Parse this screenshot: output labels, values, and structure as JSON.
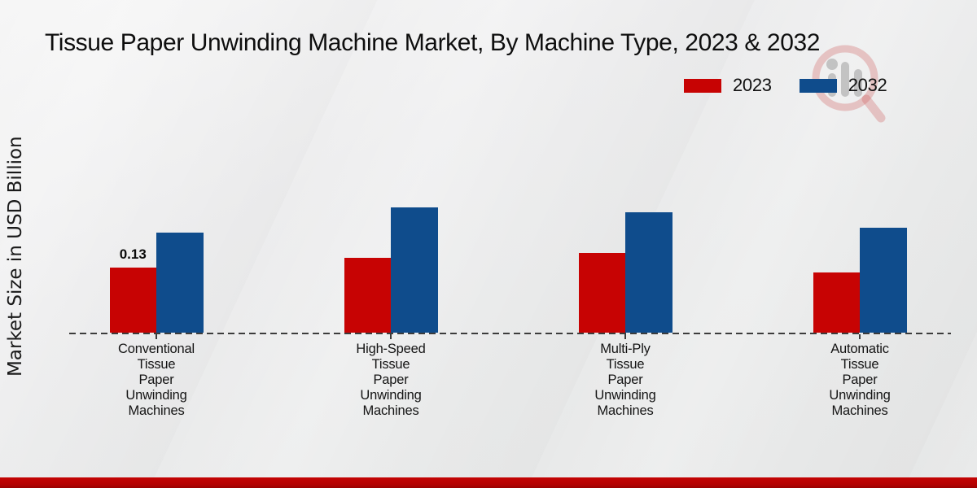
{
  "title": "Tissue Paper Unwinding Machine Market, By Machine Type, 2023 & 2032",
  "y_axis_label": "Market Size in USD Billion",
  "legend": {
    "items": [
      {
        "label": "2023",
        "color": "#c70303"
      },
      {
        "label": "2032",
        "color": "#0f4c8c"
      }
    ],
    "position": "top-right"
  },
  "colors": {
    "series_2023": "#c70303",
    "series_2032": "#0f4c8c",
    "footer_band": "#b30202",
    "baseline": "#3c3c3c",
    "background": "#eceded"
  },
  "watermark_icon": "magnifier-bar-chart-logo",
  "chart_data": {
    "type": "bar",
    "title": "Tissue Paper Unwinding Machine Market, By Machine Type, 2023 & 2032",
    "ylabel": "Market Size in USD Billion",
    "xlabel": "",
    "categories": [
      "Conventional Tissue Paper Unwinding Machines",
      "High-Speed Tissue Paper Unwinding Machines",
      "Multi-Ply Tissue Paper Unwinding Machines",
      "Automatic Tissue Paper Unwinding Machines"
    ],
    "series": [
      {
        "name": "2023",
        "color": "#c70303",
        "values": [
          0.13,
          0.15,
          0.16,
          0.12
        ]
      },
      {
        "name": "2032",
        "color": "#0f4c8c",
        "values": [
          0.2,
          0.25,
          0.24,
          0.21
        ]
      }
    ],
    "data_labels": [
      {
        "series": "2023",
        "category_index": 0,
        "text": "0.13"
      }
    ],
    "ylim": [
      0,
      0.3
    ],
    "grid": false,
    "axis_style": "dashed-baseline-only",
    "legend_position": "top-right"
  }
}
